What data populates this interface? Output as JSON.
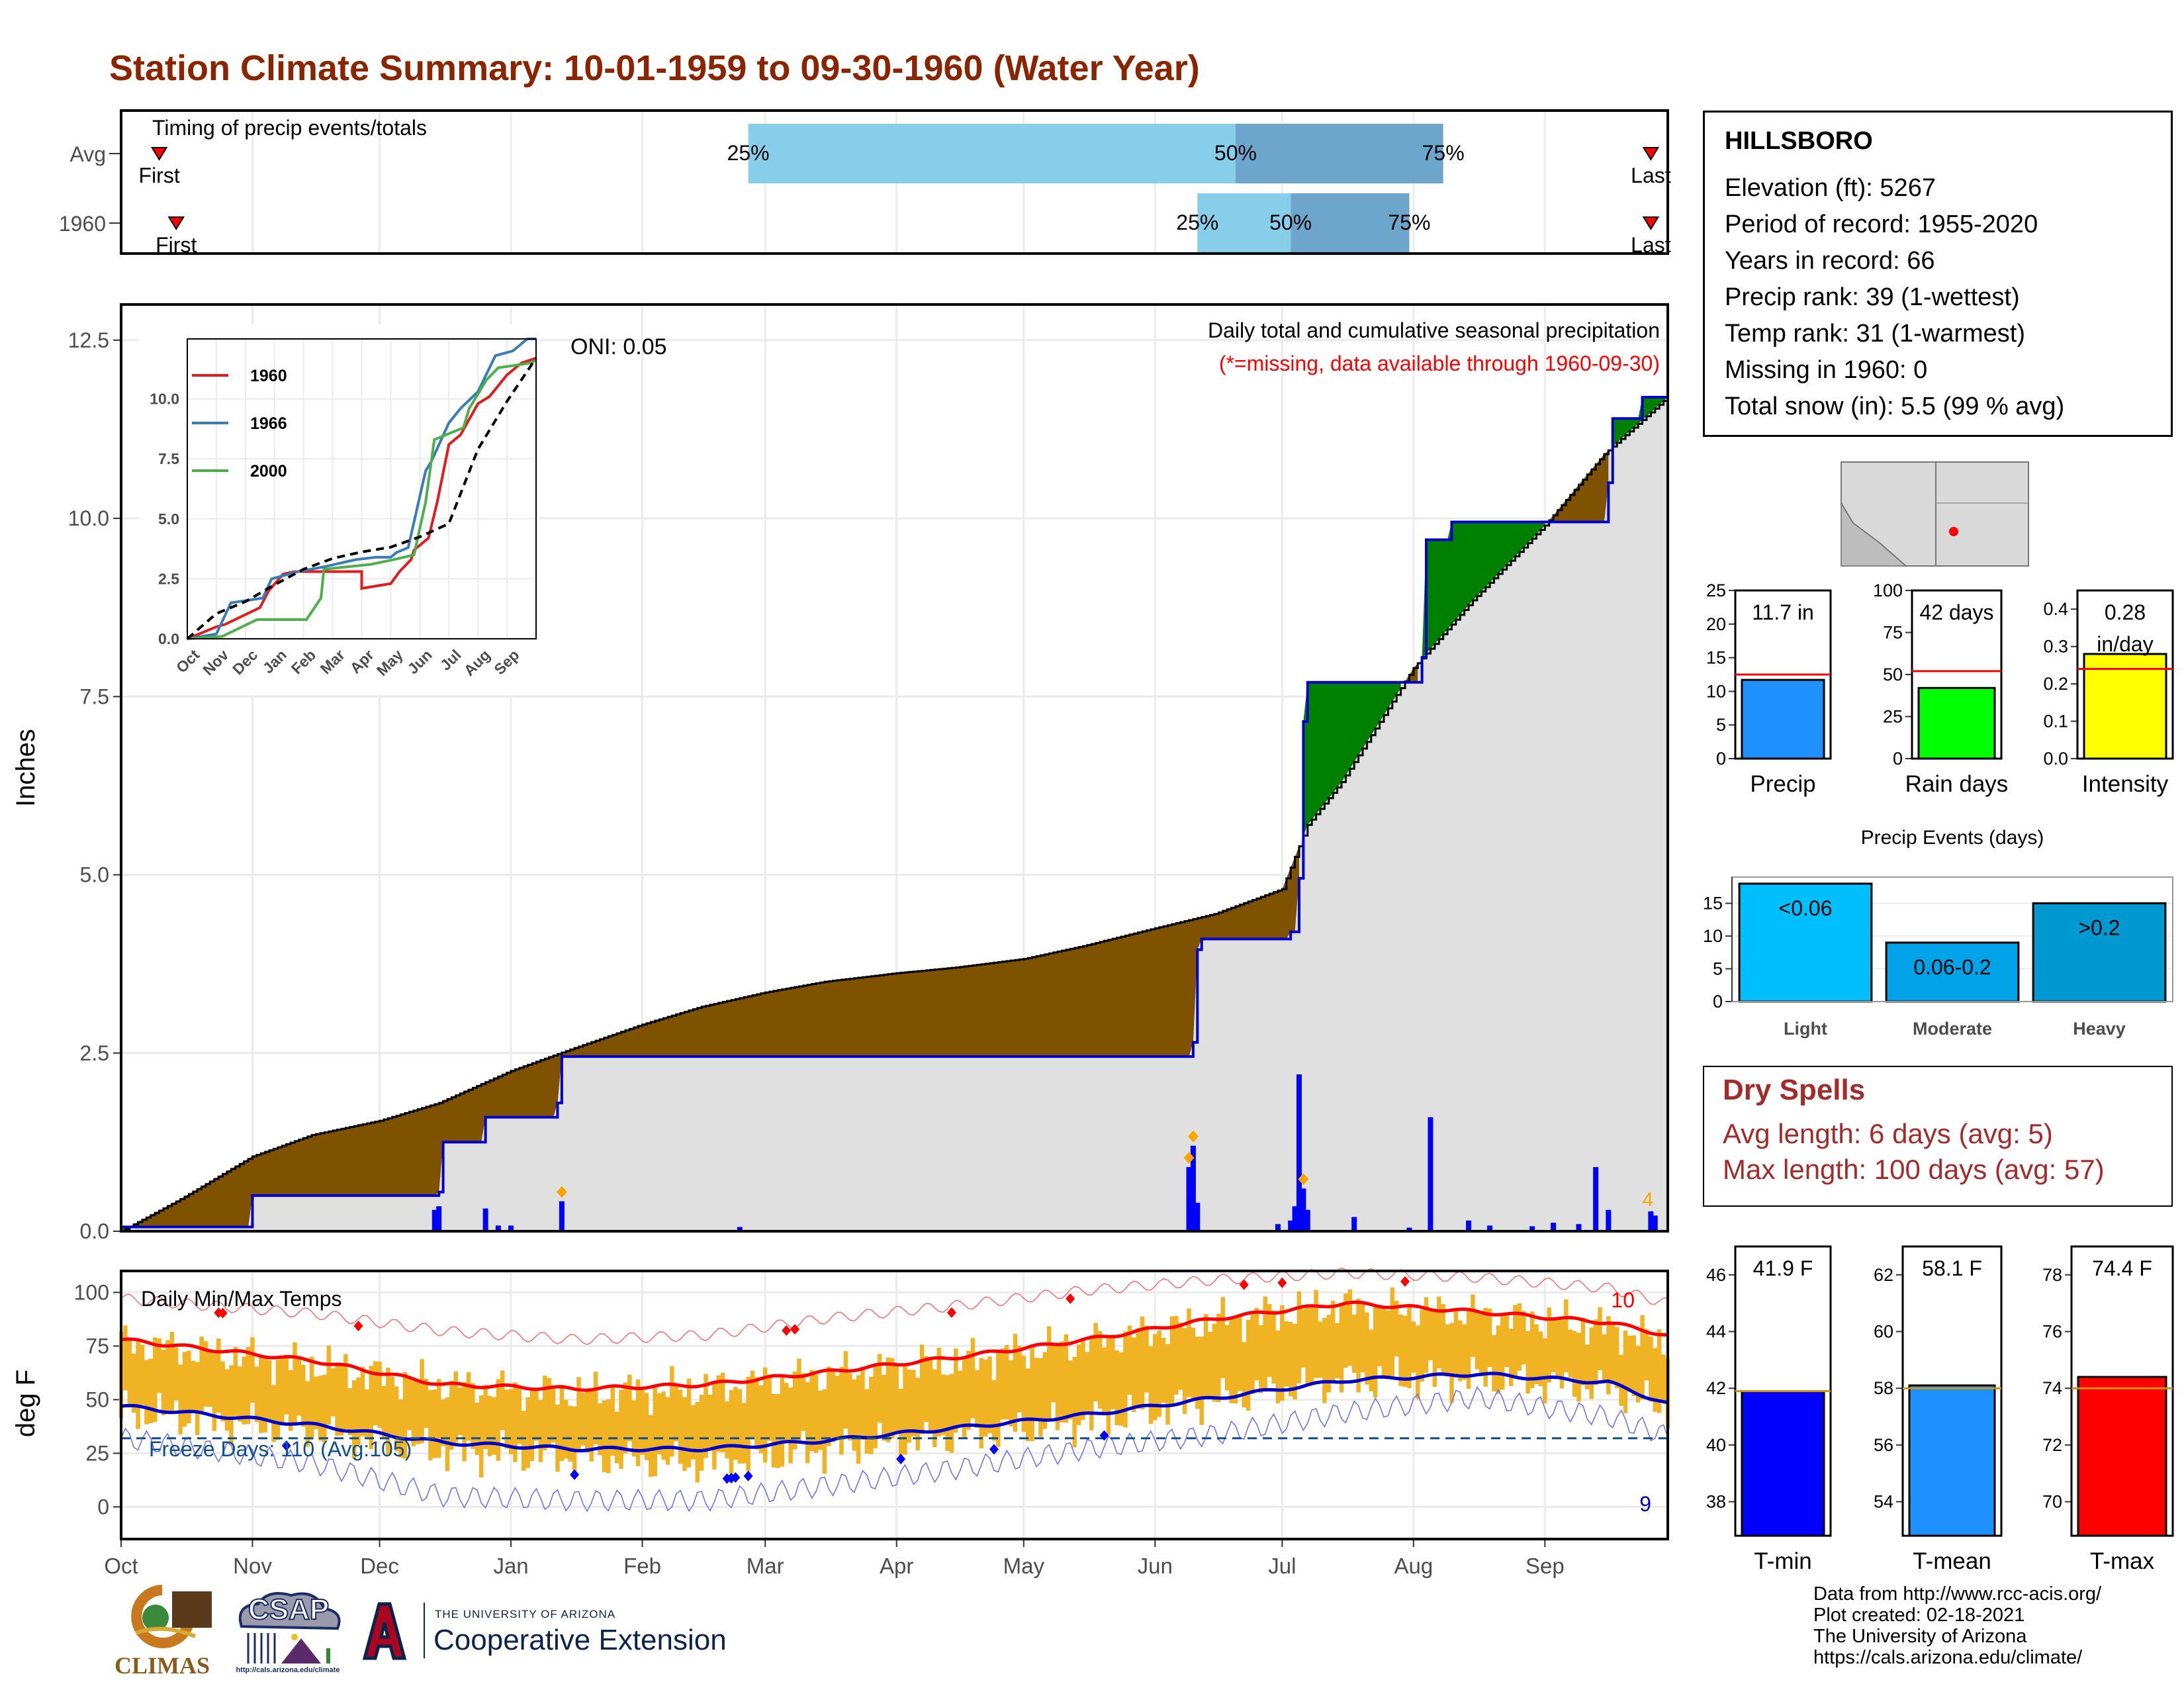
{
  "title": "Station Climate Summary: 10-01-1959 to 09-30-1960 (Water Year)",
  "station": {
    "name": "HILLSBORO",
    "lines": [
      "Elevation (ft): 5267",
      "Period of record: 1955-2020",
      "Years in record: 66",
      "Precip rank: 39 (1-wettest)",
      "Temp rank: 31 (1-warmest)",
      "Missing in 1960: 0",
      "Total snow (in): 5.5 (99 % avg)"
    ]
  },
  "dry_spells": {
    "title": "Dry Spells",
    "avg_length": "Avg length: 6 days (avg: 5)",
    "max_length": "Max length: 100 days (avg: 57)"
  },
  "credits": [
    "Data from http://www.rcc-acis.org/",
    "Plot created: 02-18-2021",
    "The University of Arizona",
    "https://cals.arizona.edu/climate/"
  ],
  "logos": {
    "climas": "CLIMAS",
    "csap": "CSAP",
    "csap_url": "http://cals.arizona.edu/climate",
    "ua_small": "THE UNIVERSITY OF ARIZONA",
    "ua_big": "Cooperative Extension"
  },
  "colors": {
    "above_avg": "#008000",
    "below_avg": "#7F5200",
    "accum_line": "#0000CD",
    "tmax": "#FF0000",
    "tmin": "#0000CD",
    "temp_bars": "#F0B323",
    "precip_bar": "#1E90FF",
    "raindays_bar": "#00FF00",
    "intensity_bar": "#FFFF00",
    "events_bar": [
      "#00BFFF",
      "#00A2E8",
      "#0098D0"
    ]
  },
  "chart_data": [
    {
      "id": "timing",
      "type": "bar",
      "title": "Timing of precip events/totals",
      "categories": [
        "Avg",
        "1960"
      ],
      "x_ticks": [
        "Oct",
        "Nov",
        "Dec",
        "Jan",
        "Feb",
        "Mar",
        "Apr",
        "May",
        "Jun",
        "Jul",
        "Aug",
        "Sep"
      ],
      "rows": [
        {
          "name": "Avg",
          "first": "1959-10-10",
          "last": "1960-09-26",
          "p25": "1960-02-26",
          "p50": "1960-06-20",
          "p75": "1960-08-08",
          "labels": {
            "first": "First",
            "last": "Last",
            "p25": "25%",
            "p50": "50%",
            "p75": "75%"
          }
        },
        {
          "name": "1960",
          "first": "1959-10-14",
          "last": "1960-09-26",
          "p25": "1960-06-11",
          "p50": "1960-07-03",
          "p75": "1960-07-31",
          "labels": {
            "first": "First",
            "last": "Last",
            "p25": "25%",
            "p50": "50%",
            "p75": "75%"
          }
        }
      ]
    },
    {
      "id": "precip",
      "type": "area",
      "title": "Daily total and cumulative seasonal precipitation",
      "subtitle": "(*=missing, data available through 1960-09-30)",
      "ylabel": "Inches",
      "ylim": [
        0,
        13
      ],
      "y_ticks": [
        "0.0",
        "2.5",
        "5.0",
        "7.5",
        "10.0",
        "12.5"
      ],
      "x_ticks": [
        "Oct",
        "Nov",
        "Dec",
        "Jan",
        "Feb",
        "Mar",
        "Apr",
        "May",
        "Jun",
        "Jul",
        "Aug",
        "Sep"
      ],
      "oni": "ONI: 0.05",
      "corner_count": "4",
      "avg_cumulative": {
        "x": [
          "1959-10-01",
          "1959-10-15",
          "1959-11-01",
          "1959-11-15",
          "1959-12-01",
          "1959-12-15",
          "1960-01-01",
          "1960-01-15",
          "1960-02-01",
          "1960-02-15",
          "1960-03-01",
          "1960-03-15",
          "1960-04-01",
          "1960-04-15",
          "1960-05-01",
          "1960-05-15",
          "1960-06-01",
          "1960-06-15",
          "1960-07-01",
          "1960-07-07",
          "1960-07-15",
          "1960-08-01",
          "1960-08-15",
          "1960-09-01",
          "1960-09-15",
          "1960-09-30"
        ],
        "y": [
          0.0,
          0.45,
          1.05,
          1.35,
          1.55,
          1.8,
          2.25,
          2.55,
          2.9,
          3.15,
          3.35,
          3.5,
          3.62,
          3.7,
          3.82,
          4.0,
          4.25,
          4.45,
          4.8,
          5.7,
          6.3,
          7.9,
          8.85,
          9.9,
          10.9,
          11.7
        ]
      },
      "series_1960_cumulative": {
        "x": [
          "1959-10-01",
          "1959-10-31",
          "1959-11-01",
          "1959-12-15",
          "1959-12-16",
          "1959-12-26",
          "1960-01-12",
          "1960-01-13",
          "1960-06-10",
          "1960-06-11",
          "1960-06-12",
          "1960-07-03",
          "1960-07-05",
          "1960-07-06",
          "1960-07-07",
          "1960-08-03",
          "1960-08-04",
          "1960-08-10",
          "1960-09-16",
          "1960-09-17",
          "1960-09-24",
          "1960-09-30"
        ],
        "y": [
          0.06,
          0.06,
          0.5,
          0.55,
          1.25,
          1.6,
          1.8,
          2.45,
          2.65,
          3.95,
          4.1,
          4.2,
          4.95,
          7.15,
          7.7,
          8.05,
          9.7,
          9.95,
          10.5,
          11.4,
          11.7,
          11.7
        ]
      },
      "daily": [
        {
          "date": "1959-12-14",
          "value": 0.3
        },
        {
          "date": "1959-12-15",
          "value": 0.35
        },
        {
          "date": "1959-12-26",
          "value": 0.32
        },
        {
          "date": "1959-12-29",
          "value": 0.08
        },
        {
          "date": "1960-01-01",
          "value": 0.08
        },
        {
          "date": "1960-01-13",
          "value": 0.42
        },
        {
          "date": "1960-02-24",
          "value": 0.06
        },
        {
          "date": "1960-06-09",
          "value": 0.9
        },
        {
          "date": "1960-06-10",
          "value": 1.2
        },
        {
          "date": "1960-06-11",
          "value": 0.4
        },
        {
          "date": "1960-06-30",
          "value": 0.1
        },
        {
          "date": "1960-07-03",
          "value": 0.15
        },
        {
          "date": "1960-07-04",
          "value": 0.35
        },
        {
          "date": "1960-07-05",
          "value": 2.2
        },
        {
          "date": "1960-07-06",
          "value": 0.6
        },
        {
          "date": "1960-07-07",
          "value": 0.3
        },
        {
          "date": "1960-07-18",
          "value": 0.2
        },
        {
          "date": "1960-07-31",
          "value": 0.05
        },
        {
          "date": "1960-08-05",
          "value": 1.6
        },
        {
          "date": "1960-08-14",
          "value": 0.15
        },
        {
          "date": "1960-08-19",
          "value": 0.08
        },
        {
          "date": "1960-08-29",
          "value": 0.07
        },
        {
          "date": "1960-09-03",
          "value": 0.12
        },
        {
          "date": "1960-09-09",
          "value": 0.1
        },
        {
          "date": "1960-09-13",
          "value": 0.9
        },
        {
          "date": "1960-09-16",
          "value": 0.3
        },
        {
          "date": "1960-09-26",
          "value": 0.28
        },
        {
          "date": "1960-09-27",
          "value": 0.22
        }
      ],
      "snow_markers": [
        "1960-01-13",
        "1960-06-09",
        "1960-06-10",
        "1960-07-06"
      ]
    },
    {
      "id": "inset",
      "type": "line",
      "ylim": [
        0,
        12.5
      ],
      "y_ticks": [
        "0.0",
        "2.5",
        "5.0",
        "7.5",
        "10.0"
      ],
      "x_ticks": [
        "Oct",
        "Nov",
        "Dec",
        "Jan",
        "Feb",
        "Mar",
        "Apr",
        "May",
        "Jun",
        "Jul",
        "Aug",
        "Sep"
      ],
      "series": [
        {
          "name": "1960",
          "color": "#E41A1C",
          "x": [
            0,
            1,
            1.3,
            2.5,
            2.8,
            3.3,
            3.7,
            6,
            6,
            6.5,
            7,
            7.3,
            7.7,
            7.8,
            8.3,
            8.6,
            9,
            9.4,
            10,
            10.4,
            11,
            11.5,
            12
          ],
          "y": [
            0,
            0.5,
            0.6,
            1.3,
            2.0,
            2.7,
            2.8,
            2.8,
            2.1,
            2.2,
            2.3,
            2.8,
            3.3,
            3.7,
            4.2,
            5.7,
            8.1,
            8.5,
            9.8,
            10.1,
            11.0,
            11.5,
            11.7
          ]
        },
        {
          "name": "1966",
          "color": "#377EB8",
          "x": [
            0,
            1,
            1.5,
            2.6,
            2.9,
            3.8,
            4.7,
            5.8,
            6.5,
            7.0,
            7.2,
            7.6,
            8.2,
            8.4,
            9.0,
            9.4,
            10.0,
            10.6,
            11.2,
            11.7,
            12
          ],
          "y": [
            0,
            0.2,
            1.5,
            1.7,
            2.5,
            2.8,
            3.0,
            3.3,
            3.4,
            3.4,
            3.6,
            3.8,
            7.0,
            7.4,
            9.0,
            9.6,
            10.3,
            11.8,
            12.0,
            12.5,
            12.5
          ]
        },
        {
          "name": "2000",
          "color": "#4DAF4A",
          "x": [
            0,
            1.2,
            2.4,
            4.1,
            4.6,
            4.7,
            6.3,
            7.1,
            7.8,
            8.2,
            8.5,
            9.5,
            9.7,
            10.3,
            10.7,
            11.3,
            11.8,
            12
          ],
          "y": [
            0,
            0.1,
            0.8,
            0.8,
            1.7,
            2.9,
            3.1,
            3.3,
            3.5,
            5.7,
            8.3,
            8.8,
            9.6,
            10.8,
            11.3,
            11.4,
            11.5,
            11.6
          ]
        },
        {
          "name": "Avg",
          "color": "#000000",
          "dashed": true,
          "x": [
            0,
            1,
            2,
            3,
            4,
            5,
            6,
            7,
            8,
            9,
            10,
            11,
            12
          ],
          "y": [
            0,
            1.05,
            1.55,
            2.25,
            2.9,
            3.35,
            3.62,
            3.82,
            4.25,
            4.8,
            7.9,
            9.9,
            11.7
          ]
        }
      ]
    },
    {
      "id": "temps",
      "type": "bar",
      "title": "Daily Min/Max Temps",
      "ylabel": "deg F",
      "ylim": [
        -15,
        110
      ],
      "y_ticks": [
        "0",
        "25",
        "50",
        "75",
        "100"
      ],
      "x_ticks": [
        "Oct",
        "Nov",
        "Dec",
        "Jan",
        "Feb",
        "Mar",
        "Apr",
        "May",
        "Jun",
        "Jul",
        "Aug",
        "Sep"
      ],
      "freeze_label": "Freeze Days: 110 (Avg:105)",
      "freeze_line": 32,
      "record_high_count": "10",
      "record_low_count": "9",
      "avg_max_monthly": [
        78,
        68,
        57,
        55,
        57,
        63,
        70,
        78,
        88,
        95,
        91,
        86,
        80
      ],
      "avg_min_monthly": [
        47,
        38,
        30,
        27,
        27,
        31,
        37,
        43,
        51,
        59,
        62,
        58,
        48
      ],
      "record_high_monthly": [
        97,
        90,
        82,
        78,
        80,
        88,
        94,
        101,
        106,
        109,
        107,
        102,
        95
      ],
      "record_low_monthly": [
        32,
        20,
        5,
        3,
        3,
        10,
        18,
        27,
        34,
        44,
        51,
        42,
        33
      ],
      "obs_max_monthly": [
        77,
        66,
        57,
        53,
        55,
        62,
        68,
        77,
        87,
        94,
        90,
        84,
        76
      ],
      "obs_min_monthly": [
        45,
        35,
        26,
        23,
        20,
        27,
        33,
        40,
        50,
        59,
        60,
        55,
        45
      ],
      "record_high_days": [
        "1959-10-24",
        "1959-10-25",
        "1959-11-26",
        "1960-03-06",
        "1960-03-08",
        "1960-04-14",
        "1960-05-12",
        "1960-06-22",
        "1960-07-01",
        "1960-07-30"
      ],
      "record_low_days": [
        "1959-11-09",
        "1960-01-16",
        "1960-02-21",
        "1960-02-22",
        "1960-02-23",
        "1960-02-26",
        "1960-04-02",
        "1960-04-24",
        "1960-05-20"
      ]
    },
    {
      "id": "precip_bars",
      "type": "bar",
      "categories": [
        "Precip",
        "Rain days",
        "Intensity"
      ],
      "panels": [
        {
          "name": "Precip",
          "value": 11.7,
          "avg": 12.5,
          "label": "11.7 in",
          "ylim": [
            0,
            25
          ],
          "y_ticks": [
            "0",
            "5",
            "10",
            "15",
            "20",
            "25"
          ]
        },
        {
          "name": "Rain days",
          "value": 42,
          "avg": 52,
          "label": "42 days",
          "ylim": [
            0,
            100
          ],
          "y_ticks": [
            "0",
            "25",
            "50",
            "75",
            "100"
          ]
        },
        {
          "name": "Intensity",
          "value": 0.28,
          "avg": 0.24,
          "label": "0.28",
          "label2": "in/day",
          "ylim": [
            0,
            0.45
          ],
          "y_ticks": [
            "0.0",
            "0.1",
            "0.2",
            "0.3",
            "0.4"
          ]
        }
      ]
    },
    {
      "id": "precip_events",
      "type": "bar",
      "title": "Precip Events (days)",
      "categories": [
        "Light",
        "Moderate",
        "Heavy"
      ],
      "values": [
        18,
        9,
        15
      ],
      "bar_labels": [
        "<0.06",
        "0.06-0.2",
        ">0.2"
      ],
      "ylim": [
        0,
        19
      ],
      "y_ticks": [
        "0",
        "5",
        "10",
        "15"
      ]
    },
    {
      "id": "temp_bars",
      "type": "bar",
      "categories": [
        "T-min",
        "T-mean",
        "T-max"
      ],
      "panels": [
        {
          "name": "T-min",
          "value": 41.9,
          "avg": 41.9,
          "label": "41.9 F",
          "ylim": [
            36.8,
            47
          ],
          "y_ticks": [
            "38",
            "40",
            "42",
            "44",
            "46"
          ],
          "color": "#0000FF"
        },
        {
          "name": "T-mean",
          "value": 58.1,
          "avg": 58.0,
          "label": "58.1 F",
          "ylim": [
            52.8,
            63
          ],
          "y_ticks": [
            "54",
            "56",
            "58",
            "60",
            "62"
          ],
          "color": "#1E90FF"
        },
        {
          "name": "T-max",
          "value": 74.4,
          "avg": 74.0,
          "label": "74.4 F",
          "ylim": [
            68.8,
            79
          ],
          "y_ticks": [
            "70",
            "72",
            "74",
            "76",
            "78"
          ],
          "color": "#FF0000"
        }
      ]
    }
  ]
}
